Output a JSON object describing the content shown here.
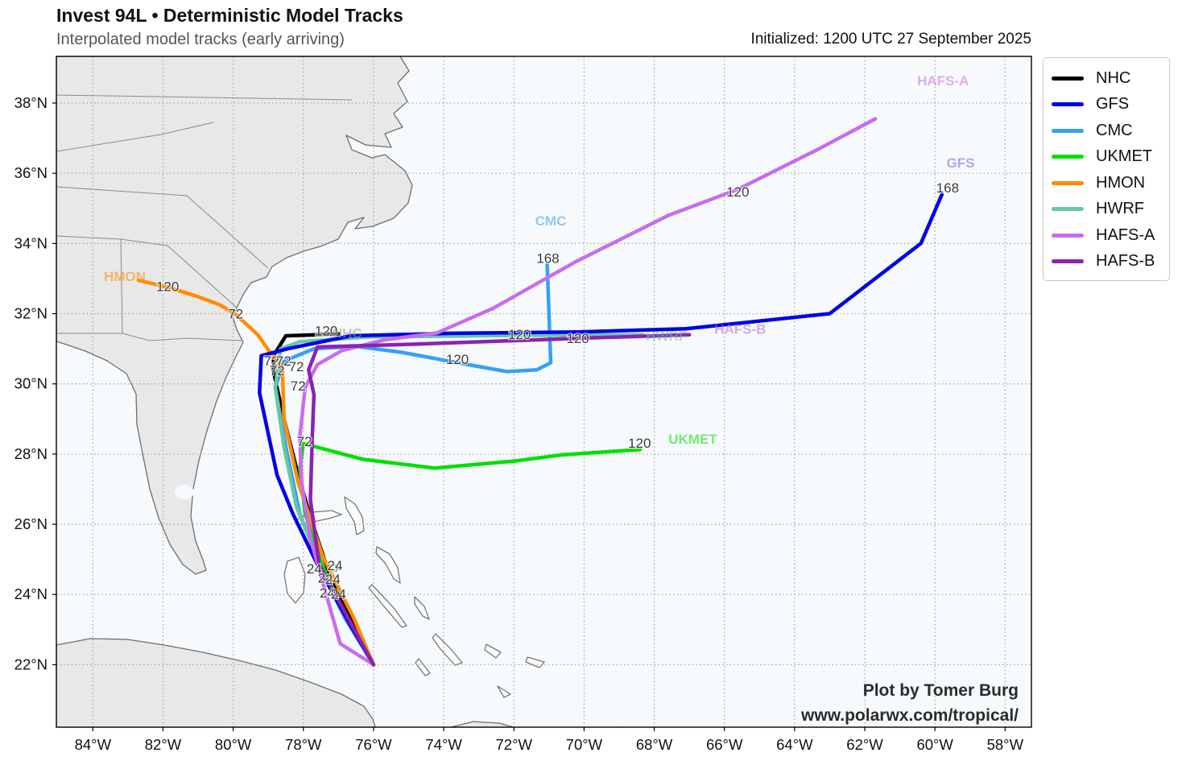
{
  "header": {
    "title": "Invest 94L • Deterministic Model Tracks",
    "subtitle": "Interpolated model tracks (early arriving)",
    "initialized": "Initialized: 1200 UTC 27 September 2025"
  },
  "attribution": {
    "line1": "Plot by Tomer Burg",
    "line2": "www.polarwx.com/tropical/"
  },
  "legend": {
    "items": [
      {
        "label": "NHC",
        "color": "#000000"
      },
      {
        "label": "GFS",
        "color": "#0000e6"
      },
      {
        "label": "CMC",
        "color": "#36a0f5"
      },
      {
        "label": "UKMET",
        "color": "#00e000"
      },
      {
        "label": "HMON",
        "color": "#ff8c00"
      },
      {
        "label": "HWRF",
        "color": "#66c7a6"
      },
      {
        "label": "HAFS-A",
        "color": "#ca6cee"
      },
      {
        "label": "HAFS-B",
        "color": "#8b22b2"
      }
    ]
  },
  "chart_data": {
    "type": "line",
    "title": "Invest 94L • Deterministic Model Tracks",
    "subtitle": "Interpolated model tracks (early arriving)",
    "initialized": "1200 UTC 27 September 2025",
    "projection": "plate-carree",
    "grid": true,
    "lon_range": [
      -85.04,
      -57.25
    ],
    "lat_range": [
      20.22,
      39.33
    ],
    "x_ticks": [
      {
        "v": -84,
        "label": "84°W"
      },
      {
        "v": -82,
        "label": "82°W"
      },
      {
        "v": -80,
        "label": "80°W"
      },
      {
        "v": -78,
        "label": "78°W"
      },
      {
        "v": -76,
        "label": "76°W"
      },
      {
        "v": -74,
        "label": "74°W"
      },
      {
        "v": -72,
        "label": "72°W"
      },
      {
        "v": -70,
        "label": "70°W"
      },
      {
        "v": -68,
        "label": "68°W"
      },
      {
        "v": -66,
        "label": "66°W"
      },
      {
        "v": -64,
        "label": "64°W"
      },
      {
        "v": -62,
        "label": "62°W"
      },
      {
        "v": -60,
        "label": "60°W"
      },
      {
        "v": -58,
        "label": "58°W"
      }
    ],
    "y_ticks": [
      {
        "v": 38,
        "label": "38°N"
      },
      {
        "v": 36,
        "label": "36°N"
      },
      {
        "v": 34,
        "label": "34°N"
      },
      {
        "v": 32,
        "label": "32°N"
      },
      {
        "v": 30,
        "label": "30°N"
      },
      {
        "v": 28,
        "label": "28°N"
      },
      {
        "v": 26,
        "label": "26°N"
      },
      {
        "v": 24,
        "label": "24°N"
      },
      {
        "v": 22,
        "label": "22°N"
      }
    ],
    "series": [
      {
        "name": "NHC",
        "color": "#000000",
        "points": [
          [
            -76.0,
            22.0
          ],
          [
            -76.6,
            23.2
          ],
          [
            -77.3,
            24.7
          ],
          [
            -77.8,
            26.2
          ],
          [
            -78.2,
            27.6
          ],
          [
            -78.6,
            29.2
          ],
          [
            -78.85,
            30.35
          ],
          [
            -78.85,
            30.8
          ],
          [
            -78.5,
            31.37
          ],
          [
            -77.0,
            31.42
          ]
        ]
      },
      {
        "name": "CMC",
        "color": "#36a0f5",
        "points": [
          [
            -76.0,
            22.0
          ],
          [
            -76.8,
            23.3
          ],
          [
            -77.4,
            24.5
          ],
          [
            -78.1,
            26.3
          ],
          [
            -78.5,
            28.2
          ],
          [
            -78.8,
            29.9
          ],
          [
            -78.55,
            30.65
          ],
          [
            -77.7,
            31.0
          ],
          [
            -76.5,
            31.07
          ],
          [
            -75.2,
            30.9
          ],
          [
            -73.6,
            30.6
          ],
          [
            -72.2,
            30.35
          ],
          [
            -71.35,
            30.4
          ],
          [
            -70.95,
            30.6
          ],
          [
            -71.05,
            33.4
          ]
        ]
      },
      {
        "name": "HWRF",
        "color": "#66c7a6",
        "points": [
          [
            -76.0,
            22.0
          ],
          [
            -76.7,
            23.25
          ],
          [
            -77.5,
            24.8
          ],
          [
            -78.2,
            26.5
          ],
          [
            -78.55,
            28.2
          ],
          [
            -78.8,
            29.9
          ],
          [
            -78.65,
            31.0
          ],
          [
            -78.1,
            31.2
          ],
          [
            -76.1,
            31.34
          ],
          [
            -71.8,
            31.38
          ],
          [
            -68.3,
            31.4
          ]
        ]
      },
      {
        "name": "UKMET",
        "color": "#00e000",
        "points": [
          [
            -76.0,
            22.0
          ],
          [
            -76.8,
            23.4
          ],
          [
            -77.45,
            24.8
          ],
          [
            -77.95,
            26.3
          ],
          [
            -78.1,
            27.6
          ],
          [
            -78.0,
            28.3
          ],
          [
            -76.3,
            27.85
          ],
          [
            -74.25,
            27.6
          ],
          [
            -72.0,
            27.8
          ],
          [
            -70.6,
            27.98
          ],
          [
            -68.4,
            28.13
          ]
        ]
      },
      {
        "name": "HMON",
        "color": "#ff8c00",
        "points": [
          [
            -76.0,
            22.0
          ],
          [
            -76.55,
            23.3
          ],
          [
            -77.45,
            25.1
          ],
          [
            -78.15,
            27.2
          ],
          [
            -78.55,
            29.0
          ],
          [
            -78.6,
            30.5
          ],
          [
            -78.95,
            30.9
          ],
          [
            -79.3,
            31.4
          ],
          [
            -79.95,
            32.0
          ],
          [
            -80.4,
            32.26
          ],
          [
            -81.05,
            32.5
          ],
          [
            -81.85,
            32.75
          ],
          [
            -82.7,
            32.95
          ]
        ]
      },
      {
        "name": "GFS",
        "color": "#0000e6",
        "points": [
          [
            -76.0,
            22.0
          ],
          [
            -76.7,
            23.2
          ],
          [
            -77.55,
            24.75
          ],
          [
            -78.3,
            26.3
          ],
          [
            -78.75,
            27.4
          ],
          [
            -79.25,
            29.75
          ],
          [
            -79.2,
            30.8
          ],
          [
            -78.45,
            31.0
          ],
          [
            -76.65,
            31.37
          ],
          [
            -73.8,
            31.44
          ],
          [
            -70.15,
            31.48
          ],
          [
            -67.1,
            31.57
          ],
          [
            -63.0,
            32.0
          ],
          [
            -60.4,
            34.0
          ],
          [
            -59.8,
            35.4
          ]
        ]
      },
      {
        "name": "HAFS-A",
        "color": "#ca6cee",
        "points": [
          [
            -76.0,
            22.0
          ],
          [
            -76.95,
            22.6
          ],
          [
            -77.35,
            24.0
          ],
          [
            -77.8,
            25.6
          ],
          [
            -78.05,
            27.2
          ],
          [
            -78.1,
            28.5
          ],
          [
            -77.95,
            29.9
          ],
          [
            -77.6,
            30.55
          ],
          [
            -76.9,
            30.95
          ],
          [
            -75.7,
            31.25
          ],
          [
            -74.2,
            31.45
          ],
          [
            -72.6,
            32.15
          ],
          [
            -70.2,
            33.5
          ],
          [
            -67.6,
            34.8
          ],
          [
            -65.6,
            35.55
          ],
          [
            -63.3,
            36.7
          ],
          [
            -61.7,
            37.55
          ]
        ]
      },
      {
        "name": "HAFS-B",
        "color": "#8b22b2",
        "points": [
          [
            -76.0,
            22.0
          ],
          [
            -76.6,
            23.1
          ],
          [
            -77.55,
            24.85
          ],
          [
            -77.8,
            26.7
          ],
          [
            -77.75,
            28.4
          ],
          [
            -77.7,
            29.7
          ],
          [
            -77.85,
            30.4
          ],
          [
            -77.6,
            31.05
          ],
          [
            -75.2,
            31.12
          ],
          [
            -71.5,
            31.25
          ],
          [
            -70.1,
            31.3
          ],
          [
            -67.0,
            31.4
          ]
        ]
      }
    ],
    "time_labels": [
      {
        "text": "120",
        "lon": -81.87,
        "lat": 32.78
      },
      {
        "text": "72",
        "lon": -79.93,
        "lat": 32.0
      },
      {
        "text": "120",
        "lon": -77.35,
        "lat": 31.52
      },
      {
        "text": "72",
        "lon": -78.91,
        "lat": 30.66
      },
      {
        "text": "72",
        "lon": -78.56,
        "lat": 30.66
      },
      {
        "text": "72",
        "lon": -78.75,
        "lat": 30.38
      },
      {
        "text": "72",
        "lon": -78.2,
        "lat": 30.5
      },
      {
        "text": "72",
        "lon": -78.15,
        "lat": 29.95
      },
      {
        "text": "72",
        "lon": -77.97,
        "lat": 28.36
      },
      {
        "text": "120",
        "lon": -73.61,
        "lat": 30.7
      },
      {
        "text": "168",
        "lon": -71.03,
        "lat": 33.58
      },
      {
        "text": "120",
        "lon": -71.84,
        "lat": 31.41
      },
      {
        "text": "120",
        "lon": -70.18,
        "lat": 31.3
      },
      {
        "text": "120",
        "lon": -68.42,
        "lat": 28.32
      },
      {
        "text": "120",
        "lon": -65.62,
        "lat": 35.48
      },
      {
        "text": "168",
        "lon": -59.64,
        "lat": 35.59
      },
      {
        "text": "24",
        "lon": -77.69,
        "lat": 24.74
      },
      {
        "text": "24",
        "lon": -77.1,
        "lat": 24.83
      },
      {
        "text": "24",
        "lon": -77.37,
        "lat": 24.48
      },
      {
        "text": "24",
        "lon": -77.16,
        "lat": 24.44
      },
      {
        "text": "24",
        "lon": -77.32,
        "lat": 24.05
      },
      {
        "text": "24",
        "lon": -77.0,
        "lat": 24.02
      }
    ],
    "model_labels": [
      {
        "text": "HMON",
        "color": "#ff8c00",
        "lon": -83.09,
        "lat": 33.07
      },
      {
        "text": "NHC",
        "color": "#9a9a9a",
        "lon": -76.75,
        "lat": 31.45
      },
      {
        "text": "CMC",
        "color": "#36a0f5",
        "lon": -70.95,
        "lat": 34.65
      },
      {
        "text": "HWRF",
        "color": "#66c7a6",
        "lon": -67.65,
        "lat": 31.37
      },
      {
        "text": "HAFS-B",
        "color": "#b06acc",
        "lon": -65.55,
        "lat": 31.56
      },
      {
        "text": "UKMET",
        "color": "#00e000",
        "lon": -66.9,
        "lat": 28.43
      },
      {
        "text": "HAFS-A",
        "color": "#ca6cee",
        "lon": -59.77,
        "lat": 38.64
      },
      {
        "text": "GFS",
        "color": "#6666f0",
        "lon": -59.27,
        "lat": 36.3
      }
    ]
  }
}
